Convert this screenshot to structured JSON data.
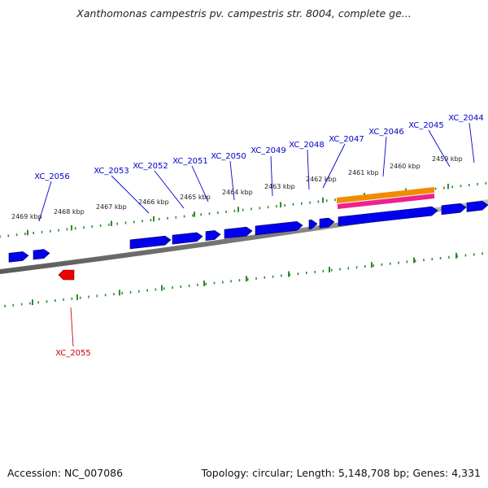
{
  "title": "Xanthomonas campestris pv. campestris str. 8004, complete ge...",
  "footer": {
    "accession": "Accession: NC_007086",
    "stats": "Topology: circular; Length: 5,148,708 bp; Genes: 4,331"
  },
  "colors": {
    "forward_gene": "#0000ee",
    "reverse_gene": "#ee0000",
    "backbone": "#888888",
    "tick": "#2e8b2e",
    "feature_orange": "#f08c00",
    "feature_magenta": "#f0208c",
    "label_forward": "#0000cc",
    "label_reverse": "#cc0000"
  },
  "kbp_ticks": [
    "2469 kbp",
    "2468 kbp",
    "2467 kbp",
    "2466 kbp",
    "2465 kbp",
    "2464 kbp",
    "2463 kbp",
    "2462 kbp",
    "2461 kbp",
    "2460 kbp",
    "2459 kbp"
  ],
  "genes": [
    {
      "id": "XC_2056",
      "strand": "forward"
    },
    {
      "id": "XC_2055",
      "strand": "reverse"
    },
    {
      "id": "XC_2053",
      "strand": "forward"
    },
    {
      "id": "XC_2052",
      "strand": "forward"
    },
    {
      "id": "XC_2051",
      "strand": "forward"
    },
    {
      "id": "XC_2050",
      "strand": "forward"
    },
    {
      "id": "XC_2049",
      "strand": "forward"
    },
    {
      "id": "XC_2048",
      "strand": "forward"
    },
    {
      "id": "XC_2047",
      "strand": "forward"
    },
    {
      "id": "XC_2046",
      "strand": "forward"
    },
    {
      "id": "XC_2045",
      "strand": "forward"
    },
    {
      "id": "XC_2044",
      "strand": "forward"
    }
  ]
}
